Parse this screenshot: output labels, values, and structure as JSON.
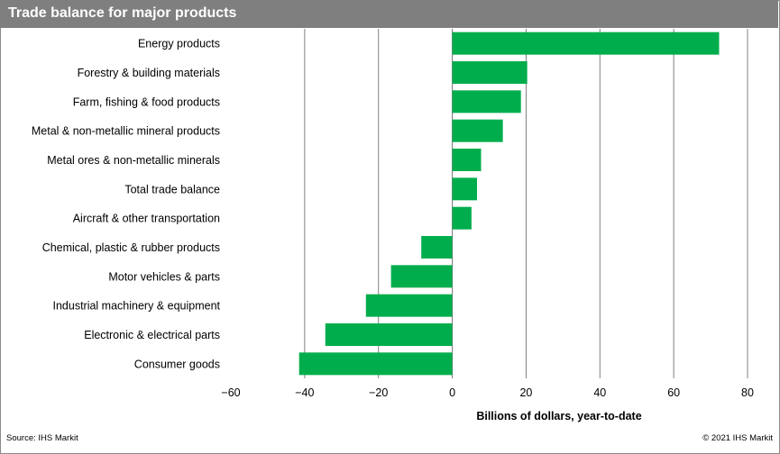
{
  "header": {
    "title": "Trade balance for major products"
  },
  "footer": {
    "source": "Source: IHS Markit",
    "copyright": "© 2021 IHS Markit"
  },
  "colors": {
    "bar": "#00ad4d",
    "header": "#7f7f7f",
    "grid": "#808080"
  },
  "chart_data": {
    "type": "bar",
    "orientation": "horizontal",
    "title": "Trade balance for major products",
    "xlabel": "Billions of dollars, year-to-date",
    "ylabel": "",
    "xlim": [
      -60,
      80
    ],
    "xticks": [
      -60,
      -40,
      -20,
      0,
      20,
      40,
      60,
      80
    ],
    "grid": true,
    "legend": "none",
    "categories": [
      "Energy products",
      "Forestry & building materials",
      "Farm, fishing & food products",
      "Metal & non-metallic mineral products",
      "Metal ores & non-metallic minerals",
      "Total trade balance",
      "Aircraft & other transportation",
      "Chemical, plastic & rubber products",
      "Motor vehicles & parts",
      "Industrial machinery & equipment",
      "Electronic & electrical parts",
      "Consumer goods"
    ],
    "values": [
      72.3,
      20.3,
      18.6,
      13.7,
      7.8,
      6.7,
      5.2,
      -8.4,
      -16.6,
      -23.4,
      -34.4,
      -41.5
    ]
  }
}
